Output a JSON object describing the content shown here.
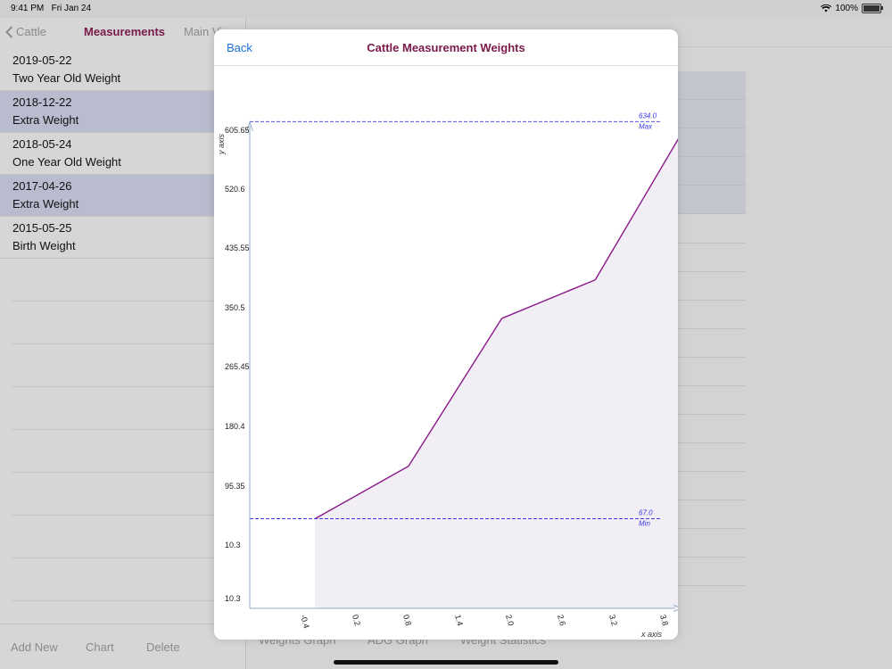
{
  "status": {
    "time": "9:41 PM",
    "date": "Fri Jan 24",
    "battery": "100%"
  },
  "master": {
    "back_label": "Cattle",
    "title": "Measurements",
    "next_label": "Main Vi",
    "rows": [
      {
        "date": "2019-05-22",
        "type": "Two Year Old Weight"
      },
      {
        "date": "2018-12-22",
        "type": "Extra Weight"
      },
      {
        "date": "2018-05-24",
        "type": "One Year Old Weight"
      },
      {
        "date": "2017-04-26",
        "type": "Extra Weight"
      },
      {
        "date": "2015-05-25",
        "type": "Birth Weight"
      }
    ],
    "toolbar": {
      "add": "Add New",
      "chart": "Chart",
      "delete": "Delete"
    }
  },
  "detail": {
    "toolbar": {
      "weights_graph": "Weights Graph",
      "adg_graph": "ADG Graph",
      "weight_statistics": "Weight Statistics"
    }
  },
  "modal": {
    "back_label": "Back",
    "title": "Cattle Measurement Weights"
  },
  "colors": {
    "accent": "#7a1a4a",
    "link": "#1a73d9",
    "line": "#8a1a8a",
    "limit": "#3a3adf",
    "fill": "#f1eef5",
    "axis": "#8fa9c8"
  },
  "chart_data": {
    "type": "area",
    "xlabel": "x axis",
    "ylabel": "y axis",
    "x_ticks": [
      "-0.4",
      "0.2",
      "0.8",
      "1.4",
      "2.0",
      "2.6",
      "3.2",
      "3.8"
    ],
    "y_ticks": [
      "10.3",
      "10.3",
      "95.35",
      "180.4",
      "265.45",
      "350.5",
      "435.55",
      "520.6",
      "605.65"
    ],
    "xlim": [
      -0.7,
      3.8
    ],
    "ylim": [
      -61,
      628
    ],
    "x": [
      0,
      1,
      2,
      3,
      4
    ],
    "values": [
      67,
      142,
      353,
      408,
      634
    ],
    "limits": [
      {
        "value": 634,
        "label_value": "634.0",
        "label": "Max"
      },
      {
        "value": 67,
        "label_value": "67.0",
        "label": "Min"
      }
    ]
  }
}
